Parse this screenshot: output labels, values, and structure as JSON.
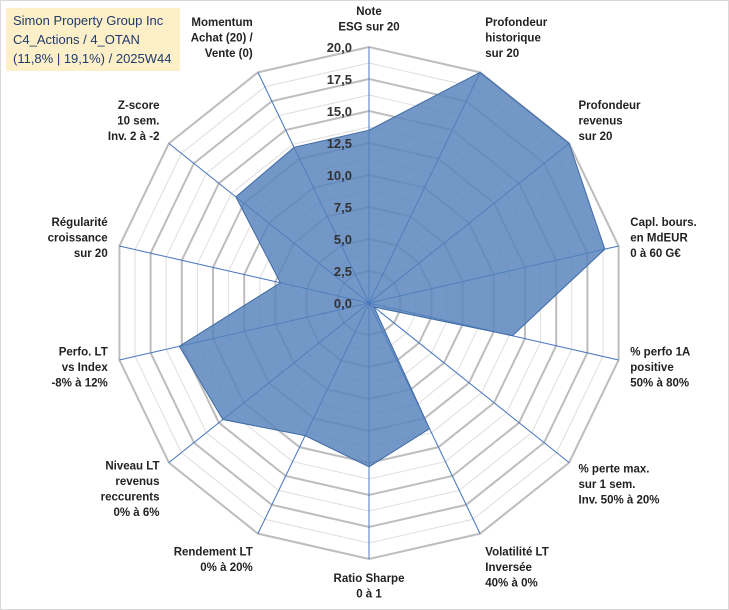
{
  "info": {
    "line1": "Simon Property Group Inc",
    "line2": "C4_Actions / 4_OTAN",
    "line3": "(11,8% | 19,1%) / 2025W44"
  },
  "colors": {
    "fill": "#5b86bd",
    "stroke": "#3f6aa3",
    "ring": "#c4c4c4",
    "spoke": "#4a78c0"
  },
  "chart_data": {
    "type": "radar",
    "title": "",
    "rlim": [
      0,
      20
    ],
    "tick_labels": [
      "0,0",
      "2,5",
      "5,0",
      "7,5",
      "10,0",
      "12,5",
      "15,0",
      "17,5",
      "20,0"
    ],
    "axes": [
      {
        "lines": [
          "Note",
          "ESG sur 20"
        ],
        "value": 13.5
      },
      {
        "lines": [
          "Profondeur",
          "historique",
          "sur 20"
        ],
        "value": 20
      },
      {
        "lines": [
          "Profondeur",
          "revenus",
          "sur 20"
        ],
        "value": 20
      },
      {
        "lines": [
          "Capl. bours.",
          "en MdEUR",
          "0 à 60 G€"
        ],
        "value": 18.9
      },
      {
        "lines": [
          "% perfo 1A",
          "positive",
          "50% à 80%"
        ],
        "value": 11.5
      },
      {
        "lines": [
          "% perte max.",
          "sur 1 sem.",
          "Inv. 50% à 20%"
        ],
        "value": 0.5
      },
      {
        "lines": [
          "Volatilité LT",
          "Inversée",
          "40% à 0%"
        ],
        "value": 10.9
      },
      {
        "lines": [
          "Ratio Sharpe",
          "0 à 1"
        ],
        "value": 12.8
      },
      {
        "lines": [
          "Rendement LT",
          "0% à 20%"
        ],
        "value": 11.5
      },
      {
        "lines": [
          "Niveau LT",
          "revenus",
          "reccurents",
          "0% à 6%"
        ],
        "value": 14.6
      },
      {
        "lines": [
          "Perfo. LT",
          "vs Index",
          "-8% à 12%"
        ],
        "value": 15.2
      },
      {
        "lines": [
          "Régularité",
          "croissance",
          "sur 20"
        ],
        "value": 7.1
      },
      {
        "lines": [
          "Z-score",
          "10 sem.",
          "Inv. 2 à -2"
        ],
        "value": 13.3
      },
      {
        "lines": [
          "Momentum",
          "Achat (20) /",
          "Vente (0)"
        ],
        "value": 13.5
      }
    ]
  }
}
